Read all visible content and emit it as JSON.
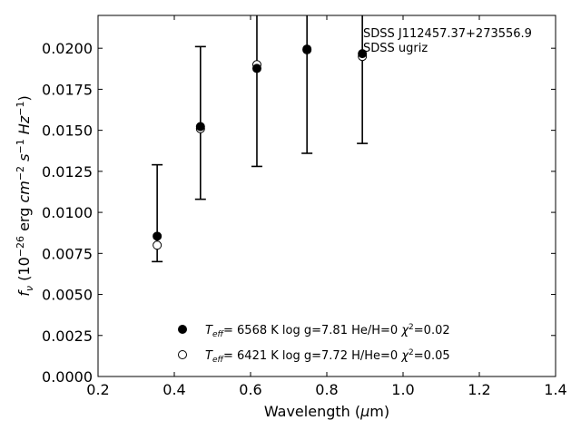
{
  "chart_data": {
    "type": "scatter",
    "annotations": [
      "SDSS J112457.37+273556.9",
      "SDSS ugriz"
    ],
    "xlabel": "Wavelength (μm)",
    "ylabel": "f_ν (10^-26 erg cm^-2 s^-1 Hz^-1)",
    "xlim": [
      0.2,
      1.4
    ],
    "ylim": [
      0.0,
      0.022
    ],
    "x_ticks": [
      "0.2",
      "0.4",
      "0.6",
      "0.8",
      "1.0",
      "1.2",
      "1.4"
    ],
    "y_ticks": [
      "0.0000",
      "0.0025",
      "0.0050",
      "0.0075",
      "0.0100",
      "0.0125",
      "0.0150",
      "0.0175",
      "0.0200"
    ],
    "observed": {
      "x": [
        0.3551,
        0.4686,
        0.6166,
        0.748,
        0.8932
      ],
      "y": [
        0.008,
        0.0151,
        0.019,
        0.0199,
        0.0195
      ],
      "yerr_low": [
        0.007,
        0.0108,
        0.0128,
        0.0136,
        0.0142
      ],
      "yerr_high": [
        0.0129,
        0.0201,
        0.026,
        0.027,
        0.025
      ]
    },
    "series": [
      {
        "legend": {
          "teff_value": "6568 K",
          "logg": "log g=7.81",
          "comp": "He/H=0",
          "chi2": "=0.02"
        },
        "marker": "filled",
        "x": [
          0.3551,
          0.4686,
          0.6166,
          0.748,
          0.8932
        ],
        "y": [
          0.00855,
          0.01523,
          0.01877,
          0.01995,
          0.01967
        ]
      },
      {
        "legend": {
          "teff_value": "6421 K",
          "logg": "log g=7.72",
          "comp": "H/He=0",
          "chi2": "=0.05"
        },
        "marker": "open",
        "x": [
          0.3551,
          0.4686,
          0.6166,
          0.748,
          0.8932
        ],
        "y": [
          0.008,
          0.0151,
          0.019,
          0.0199,
          0.0195
        ]
      }
    ],
    "legend_position": "lower center"
  }
}
